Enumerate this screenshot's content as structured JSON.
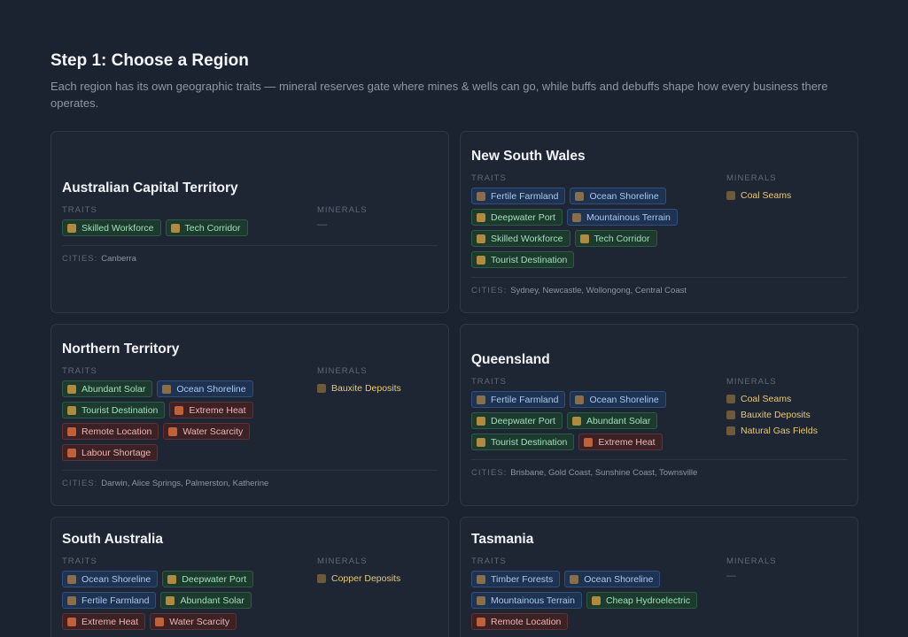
{
  "header": {
    "title": "Step 1: Choose a Region",
    "description": "Each region has its own geographic traits — mineral reserves gate where mines & wells can go, while buffs and debuffs shape how every business there operates."
  },
  "labels": {
    "traits": "TRAITS",
    "minerals": "MINERALS",
    "cities": "CITIES:",
    "none": "—"
  },
  "colors": {
    "buff_chip": "#1d3a2e",
    "infra_chip": "#1e3352",
    "debuff_chip": "#3c2225",
    "mineral_text": "#e7c979"
  },
  "regions": [
    {
      "name": "Australian Capital Territory",
      "traits": [
        {
          "label": "Skilled Workforce",
          "kind": "green",
          "icon": "worker-icon"
        },
        {
          "label": "Tech Corridor",
          "kind": "green",
          "icon": "chip-icon"
        }
      ],
      "minerals": [],
      "cities": "Canberra"
    },
    {
      "name": "New South Wales",
      "traits": [
        {
          "label": "Fertile Farmland",
          "kind": "blue",
          "icon": "farm-icon"
        },
        {
          "label": "Ocean Shoreline",
          "kind": "blue",
          "icon": "wave-icon"
        },
        {
          "label": "Deepwater Port",
          "kind": "green",
          "icon": "anchor-icon"
        },
        {
          "label": "Mountainous Terrain",
          "kind": "blue",
          "icon": "mountain-icon"
        },
        {
          "label": "Skilled Workforce",
          "kind": "green",
          "icon": "worker-icon"
        },
        {
          "label": "Tech Corridor",
          "kind": "green",
          "icon": "chip-icon"
        },
        {
          "label": "Tourist Destination",
          "kind": "green",
          "icon": "palm-icon"
        }
      ],
      "minerals": [
        {
          "label": "Coal Seams",
          "icon": "coal-icon"
        }
      ],
      "cities": "Sydney, Newcastle, Wollongong, Central Coast"
    },
    {
      "name": "Northern Territory",
      "traits": [
        {
          "label": "Abundant Solar",
          "kind": "green",
          "icon": "sun-icon"
        },
        {
          "label": "Ocean Shoreline",
          "kind": "blue",
          "icon": "wave-icon"
        },
        {
          "label": "Tourist Destination",
          "kind": "green",
          "icon": "palm-icon"
        },
        {
          "label": "Extreme Heat",
          "kind": "red",
          "icon": "thermometer-icon"
        },
        {
          "label": "Remote Location",
          "kind": "red",
          "icon": "pin-icon"
        },
        {
          "label": "Water Scarcity",
          "kind": "red",
          "icon": "droplet-icon"
        },
        {
          "label": "Labour Shortage",
          "kind": "red",
          "icon": "worker-icon"
        }
      ],
      "minerals": [
        {
          "label": "Bauxite Deposits",
          "icon": "rock-icon"
        }
      ],
      "cities": "Darwin, Alice Springs, Palmerston, Katherine"
    },
    {
      "name": "Queensland",
      "traits": [
        {
          "label": "Fertile Farmland",
          "kind": "blue",
          "icon": "farm-icon"
        },
        {
          "label": "Ocean Shoreline",
          "kind": "blue",
          "icon": "wave-icon"
        },
        {
          "label": "Deepwater Port",
          "kind": "green",
          "icon": "anchor-icon"
        },
        {
          "label": "Abundant Solar",
          "kind": "green",
          "icon": "sun-icon"
        },
        {
          "label": "Tourist Destination",
          "kind": "green",
          "icon": "palm-icon"
        },
        {
          "label": "Extreme Heat",
          "kind": "red",
          "icon": "thermometer-icon"
        }
      ],
      "minerals": [
        {
          "label": "Coal Seams",
          "icon": "coal-icon"
        },
        {
          "label": "Bauxite Deposits",
          "icon": "rock-icon"
        },
        {
          "label": "Natural Gas Fields",
          "icon": "flame-icon"
        }
      ],
      "cities": "Brisbane, Gold Coast, Sunshine Coast, Townsville"
    },
    {
      "name": "South Australia",
      "traits": [
        {
          "label": "Ocean Shoreline",
          "kind": "blue",
          "icon": "wave-icon"
        },
        {
          "label": "Deepwater Port",
          "kind": "green",
          "icon": "anchor-icon"
        },
        {
          "label": "Fertile Farmland",
          "kind": "blue",
          "icon": "farm-icon"
        },
        {
          "label": "Abundant Solar",
          "kind": "green",
          "icon": "sun-icon"
        },
        {
          "label": "Extreme Heat",
          "kind": "red",
          "icon": "thermometer-icon"
        },
        {
          "label": "Water Scarcity",
          "kind": "red",
          "icon": "droplet-icon"
        }
      ],
      "minerals": [
        {
          "label": "Copper Deposits",
          "icon": "ore-icon"
        }
      ],
      "cities": ""
    },
    {
      "name": "Tasmania",
      "traits": [
        {
          "label": "Timber Forests",
          "kind": "blue",
          "icon": "tree-icon"
        },
        {
          "label": "Ocean Shoreline",
          "kind": "blue",
          "icon": "wave-icon"
        },
        {
          "label": "Mountainous Terrain",
          "kind": "blue",
          "icon": "mountain-icon"
        },
        {
          "label": "Cheap Hydroelectric",
          "kind": "green",
          "icon": "dam-icon"
        },
        {
          "label": "Remote Location",
          "kind": "red",
          "icon": "pin-icon"
        }
      ],
      "minerals": [],
      "cities": ""
    }
  ]
}
